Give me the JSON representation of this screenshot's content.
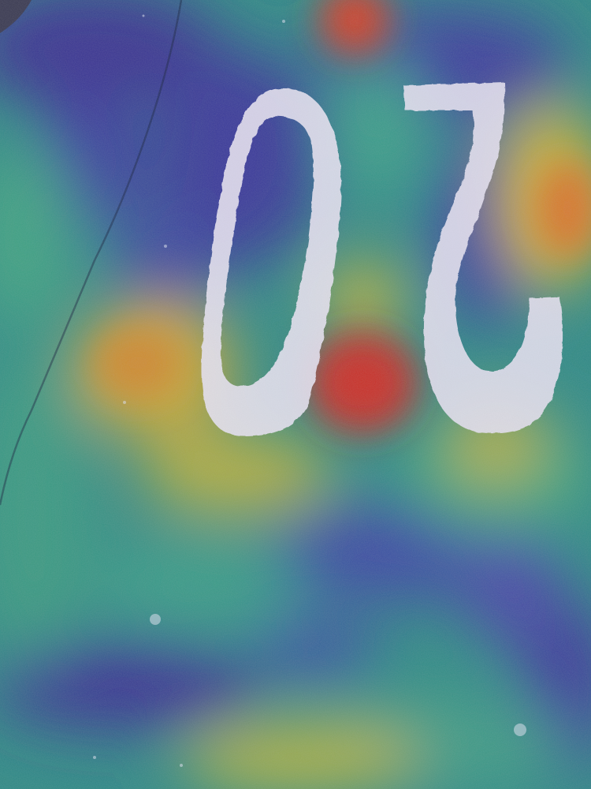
{
  "image": {
    "painted_text": "20",
    "painted_text_orientation": "upside-down",
    "overlay": "heatmap",
    "colors": {
      "paint": "#e9e6f3",
      "asphalt_dark": "#2c2a6e",
      "heat_low": "#3b3fa0",
      "heat_mid": "#2f9a8a",
      "heat_high_yellow": "#c8b23a",
      "heat_peak": "#c9342a"
    }
  }
}
